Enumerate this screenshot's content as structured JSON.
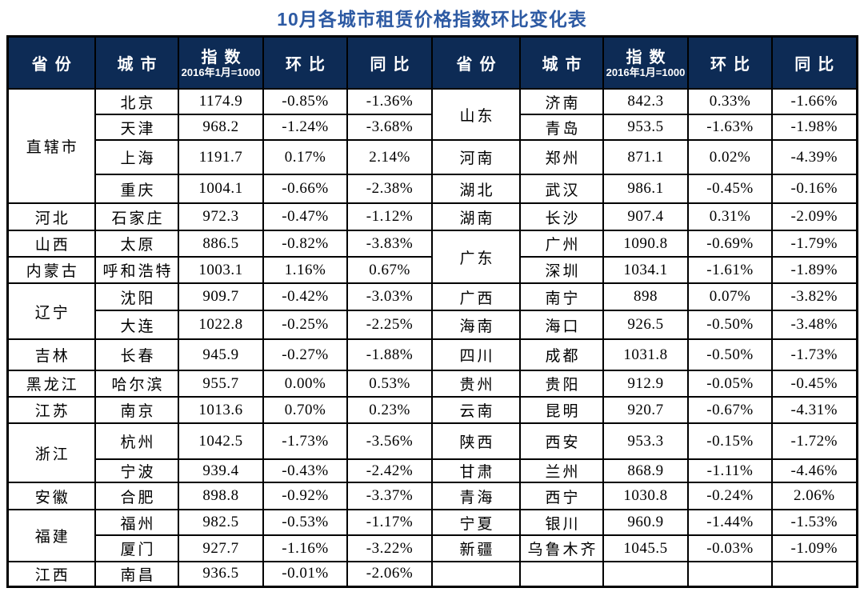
{
  "title": "10月各城市租赁价格指数环比变化表",
  "colors": {
    "title_text": "#2d5aa3",
    "header_bg": "#0d2b55",
    "header_text": "#ffffff",
    "border": "#000000",
    "body_text": "#000000",
    "background": "#ffffff"
  },
  "header": {
    "province": "省份",
    "city": "城市",
    "index": "指数",
    "index_note": "2016年1月=1000",
    "mom": "环比",
    "yoy": "同比"
  },
  "table": {
    "left_rows": [
      {
        "province": "直辖市",
        "province_rowspan": 4,
        "city": "北京",
        "index": "1174.9",
        "mom": "-0.85%",
        "yoy": "-1.36%"
      },
      {
        "city": "天津",
        "index": "968.2",
        "mom": "-1.24%",
        "yoy": "-3.68%"
      },
      {
        "city": "上海",
        "index": "1191.7",
        "mom": "0.17%",
        "yoy": "2.14%"
      },
      {
        "city": "重庆",
        "index": "1004.1",
        "mom": "-0.66%",
        "yoy": "-2.38%"
      },
      {
        "province": "河北",
        "province_rowspan": 1,
        "city": "石家庄",
        "index": "972.3",
        "mom": "-0.47%",
        "yoy": "-1.12%"
      },
      {
        "province": "山西",
        "province_rowspan": 1,
        "city": "太原",
        "index": "886.5",
        "mom": "-0.82%",
        "yoy": "-3.83%"
      },
      {
        "province": "内蒙古",
        "province_rowspan": 1,
        "city": "呼和浩特",
        "index": "1003.1",
        "mom": "1.16%",
        "yoy": "0.67%"
      },
      {
        "province": "辽宁",
        "province_rowspan": 2,
        "city": "沈阳",
        "index": "909.7",
        "mom": "-0.42%",
        "yoy": "-3.03%"
      },
      {
        "city": "大连",
        "index": "1022.8",
        "mom": "-0.25%",
        "yoy": "-2.25%"
      },
      {
        "province": "吉林",
        "province_rowspan": 1,
        "city": "长春",
        "index": "945.9",
        "mom": "-0.27%",
        "yoy": "-1.88%"
      },
      {
        "province": "黑龙江",
        "province_rowspan": 1,
        "city": "哈尔滨",
        "index": "955.7",
        "mom": "0.00%",
        "yoy": "0.53%"
      },
      {
        "province": "江苏",
        "province_rowspan": 1,
        "city": "南京",
        "index": "1013.6",
        "mom": "0.70%",
        "yoy": "0.23%"
      },
      {
        "province": "浙江",
        "province_rowspan": 2,
        "city": "杭州",
        "index": "1042.5",
        "mom": "-1.73%",
        "yoy": "-3.56%"
      },
      {
        "city": "宁波",
        "index": "939.4",
        "mom": "-0.43%",
        "yoy": "-2.42%"
      },
      {
        "province": "安徽",
        "province_rowspan": 1,
        "city": "合肥",
        "index": "898.8",
        "mom": "-0.92%",
        "yoy": "-3.37%"
      },
      {
        "province": "福建",
        "province_rowspan": 2,
        "city": "福州",
        "index": "982.5",
        "mom": "-0.53%",
        "yoy": "-1.17%"
      },
      {
        "city": "厦门",
        "index": "927.7",
        "mom": "-1.16%",
        "yoy": "-3.22%"
      },
      {
        "province": "江西",
        "province_rowspan": 1,
        "city": "南昌",
        "index": "936.5",
        "mom": "-0.01%",
        "yoy": "-2.06%"
      }
    ],
    "right_rows": [
      {
        "province": "山东",
        "province_rowspan": 2,
        "city": "济南",
        "index": "842.3",
        "mom": "0.33%",
        "yoy": "-1.66%"
      },
      {
        "city": "青岛",
        "index": "953.5",
        "mom": "-1.63%",
        "yoy": "-1.98%"
      },
      {
        "province": "河南",
        "province_rowspan": 1,
        "city": "郑州",
        "index": "871.1",
        "mom": "0.02%",
        "yoy": "-4.39%"
      },
      {
        "province": "湖北",
        "province_rowspan": 1,
        "city": "武汉",
        "index": "986.1",
        "mom": "-0.45%",
        "yoy": "-0.16%"
      },
      {
        "province": "湖南",
        "province_rowspan": 1,
        "city": "长沙",
        "index": "907.4",
        "mom": "0.31%",
        "yoy": "-2.09%"
      },
      {
        "province": "广东",
        "province_rowspan": 2,
        "city": "广州",
        "index": "1090.8",
        "mom": "-0.69%",
        "yoy": "-1.79%"
      },
      {
        "city": "深圳",
        "index": "1034.1",
        "mom": "-1.61%",
        "yoy": "-1.89%"
      },
      {
        "province": "广西",
        "province_rowspan": 1,
        "city": "南宁",
        "index": "898",
        "mom": "0.07%",
        "yoy": "-3.82%"
      },
      {
        "province": "海南",
        "province_rowspan": 1,
        "city": "海口",
        "index": "926.5",
        "mom": "-0.50%",
        "yoy": "-3.48%"
      },
      {
        "province": "四川",
        "province_rowspan": 1,
        "city": "成都",
        "index": "1031.8",
        "mom": "-0.50%",
        "yoy": "-1.73%"
      },
      {
        "province": "贵州",
        "province_rowspan": 1,
        "city": "贵阳",
        "index": "912.9",
        "mom": "-0.05%",
        "yoy": "-0.45%"
      },
      {
        "province": "云南",
        "province_rowspan": 1,
        "city": "昆明",
        "index": "920.7",
        "mom": "-0.67%",
        "yoy": "-4.31%"
      },
      {
        "province": "陕西",
        "province_rowspan": 1,
        "city": "西安",
        "index": "953.3",
        "mom": "-0.15%",
        "yoy": "-1.72%"
      },
      {
        "province": "甘肃",
        "province_rowspan": 1,
        "city": "兰州",
        "index": "868.9",
        "mom": "-1.11%",
        "yoy": "-4.46%"
      },
      {
        "province": "青海",
        "province_rowspan": 1,
        "city": "西宁",
        "index": "1030.8",
        "mom": "-0.24%",
        "yoy": "2.06%"
      },
      {
        "province": "宁夏",
        "province_rowspan": 1,
        "city": "银川",
        "index": "960.9",
        "mom": "-1.44%",
        "yoy": "-1.53%"
      },
      {
        "province": "新疆",
        "province_rowspan": 1,
        "city": "乌鲁木齐",
        "index": "1045.5",
        "mom": "-0.03%",
        "yoy": "-1.09%"
      },
      {
        "province": "",
        "province_rowspan": 1,
        "city": "",
        "index": "",
        "mom": "",
        "yoy": ""
      }
    ]
  }
}
